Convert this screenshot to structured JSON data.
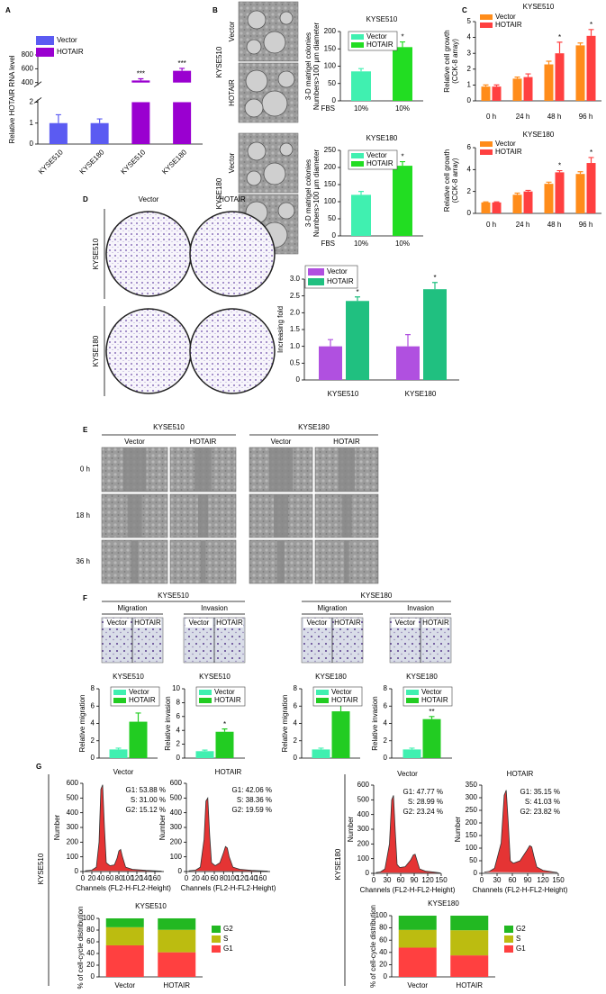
{
  "figure": {
    "panel_letters": [
      "A",
      "B",
      "C",
      "D",
      "E",
      "F",
      "G"
    ],
    "B": [
      {
        "cell_line": "KYSE510",
        "conditions": [
          "Vector",
          "HOTAIR"
        ]
      },
      {
        "cell_line": "KYSE180",
        "conditions": [
          "Vector",
          "HOTAIR"
        ]
      }
    ],
    "D": {
      "columns": [
        "Vector",
        "HOTAIR"
      ],
      "rows": [
        "KYSE510",
        "KYSE180"
      ]
    },
    "E": {
      "groups": [
        {
          "title": "KYSE510",
          "columns": [
            "Vector",
            "HOTAIR"
          ]
        },
        {
          "title": "KYSE180",
          "columns": [
            "Vector",
            "HOTAIR"
          ]
        }
      ],
      "rows": [
        "0 h",
        "18 h",
        "36 h"
      ]
    },
    "F": {
      "groups": [
        {
          "title": "KYSE510",
          "assays": [
            {
              "title": "Migration",
              "columns": [
                "Vector",
                "HOTAIR"
              ]
            },
            {
              "title": "Invasion",
              "columns": [
                "Vector",
                "HOTAIR"
              ]
            }
          ]
        },
        {
          "title": "KYSE180",
          "assays": [
            {
              "title": "Migration",
              "columns": [
                "Vector",
                "HOTAIR"
              ]
            },
            {
              "title": "Invasion",
              "columns": [
                "Vector",
                "HOTAIR"
              ]
            }
          ]
        }
      ]
    },
    "G": {
      "rows": [
        "KYSE510",
        "KYSE180"
      ]
    }
  },
  "chart_data": [
    {
      "type": "bar",
      "ylabel": "Relative HOTAIR RNA level",
      "categories": [
        "KYSE510",
        "KYSE180",
        "KYSE510",
        "KYSE180"
      ],
      "series": [
        {
          "name": "Vector",
          "color": "#5b5bf2",
          "values": [
            1,
            1,
            null,
            null
          ],
          "errors": [
            0.4,
            0.2,
            null,
            null
          ]
        },
        {
          "name": "HOTAIR",
          "color": "#9a00d0",
          "values": [
            null,
            null,
            430,
            570
          ],
          "errors": [
            null,
            null,
            25,
            35
          ],
          "significance": [
            null,
            null,
            "***",
            "***"
          ]
        }
      ],
      "ylim": [
        0,
        800
      ],
      "ybreak": [
        2,
        400
      ],
      "yticks": [
        0,
        1,
        2,
        400,
        600,
        800
      ],
      "legend": "upper left"
    },
    {
      "type": "bar",
      "title": "KYSE510",
      "ylabel": [
        "3-D matrigel colonies",
        "Numbers>100 μm diameter"
      ],
      "xlabel": "FBS",
      "categories": [
        "10%",
        "10%"
      ],
      "series": [
        {
          "name": "Vector",
          "color": "#40f0b0",
          "values": [
            85,
            null
          ],
          "errors": [
            8,
            null
          ]
        },
        {
          "name": "HOTAIR",
          "color": "#22dd22",
          "values": [
            null,
            155
          ],
          "errors": [
            null,
            15
          ],
          "significance": [
            null,
            "*"
          ]
        }
      ],
      "ylim": [
        0,
        200
      ],
      "yticks": [
        0,
        50,
        100,
        150,
        200
      ],
      "legend": "upper left"
    },
    {
      "type": "bar",
      "title": "KYSE180",
      "ylabel": [
        "3-D matrigel colonies",
        "Numbers>100 μm diameter"
      ],
      "xlabel": "FBS",
      "categories": [
        "10%",
        "10%"
      ],
      "series": [
        {
          "name": "Vector",
          "color": "#40f0b0",
          "values": [
            120,
            null
          ],
          "errors": [
            10,
            null
          ]
        },
        {
          "name": "HOTAIR",
          "color": "#22dd22",
          "values": [
            null,
            205
          ],
          "errors": [
            null,
            12
          ],
          "significance": [
            null,
            "*"
          ]
        }
      ],
      "ylim": [
        0,
        250
      ],
      "yticks": [
        0,
        50,
        100,
        150,
        200,
        250
      ],
      "legend": "upper left"
    },
    {
      "type": "bar",
      "title": "KYSE510",
      "ylabel": [
        "Relative cell growth",
        "(CCK-8 array)"
      ],
      "categories": [
        "0 h",
        "24 h",
        "48 h",
        "96 h"
      ],
      "series": [
        {
          "name": "Vector",
          "color": "#ff8c1a",
          "values": [
            0.9,
            1.4,
            2.3,
            3.5
          ],
          "errors": [
            0.1,
            0.1,
            0.2,
            0.15
          ]
        },
        {
          "name": "HOTAIR",
          "color": "#ff4040",
          "values": [
            0.9,
            1.5,
            3.0,
            4.1
          ],
          "errors": [
            0.1,
            0.2,
            0.7,
            0.4
          ],
          "significance": [
            null,
            null,
            "*",
            "*"
          ]
        }
      ],
      "ylim": [
        0,
        5
      ],
      "yticks": [
        0,
        1,
        2,
        3,
        4,
        5
      ],
      "legend": "upper left"
    },
    {
      "type": "bar",
      "title": "KYSE180",
      "ylabel": [
        "Relative cell growth",
        "(CCK-8 array)"
      ],
      "categories": [
        "0 h",
        "24 h",
        "48 h",
        "96 h"
      ],
      "series": [
        {
          "name": "Vector",
          "color": "#ff8c1a",
          "values": [
            1.0,
            1.7,
            2.7,
            3.6
          ],
          "errors": [
            0.05,
            0.15,
            0.15,
            0.2
          ]
        },
        {
          "name": "HOTAIR",
          "color": "#ff4040",
          "values": [
            1.0,
            2.0,
            3.75,
            4.6
          ],
          "errors": [
            0.05,
            0.1,
            0.15,
            0.5
          ],
          "significance": [
            null,
            null,
            "*",
            "*"
          ]
        }
      ],
      "ylim": [
        0,
        6
      ],
      "yticks": [
        0,
        2,
        4,
        6
      ],
      "legend": "upper left"
    },
    {
      "type": "bar",
      "ylabel": "Increasing fold",
      "categories": [
        "KYSE510",
        "KYSE180"
      ],
      "series": [
        {
          "name": "Vector",
          "color": "#b050e0",
          "values": [
            1.0,
            1.0
          ],
          "errors": [
            0.2,
            0.35
          ]
        },
        {
          "name": "HOTAIR",
          "color": "#20c080",
          "values": [
            2.35,
            2.7
          ],
          "errors": [
            0.12,
            0.2
          ],
          "significance": [
            "*",
            "*"
          ]
        }
      ],
      "ylim": [
        0,
        3
      ],
      "yticks": [
        0,
        0.5,
        {
          "value": 1,
          "label": "1.0"
        },
        1.5,
        {
          "value": 2,
          "label": "2.0"
        },
        2.5,
        {
          "value": 3,
          "label": "3.0"
        }
      ],
      "legend": "upper left"
    },
    {
      "type": "bar",
      "title": "KYSE510",
      "ylabel": "Relative migration",
      "categories": [
        null
      ],
      "series": [
        {
          "name": "Vector",
          "color": "#40f0b0",
          "values": [
            1
          ],
          "errors": [
            0.15
          ]
        },
        {
          "name": "HOTAIR",
          "color": "#22cc22",
          "values": [
            4.2
          ],
          "errors": [
            1.0
          ]
        }
      ],
      "ylim": [
        0,
        8
      ],
      "yticks": [
        0,
        2,
        4,
        6,
        8
      ],
      "legend": "upper left"
    },
    {
      "type": "bar",
      "title": "KYSE510",
      "ylabel": "Relative invasion",
      "categories": [
        null
      ],
      "series": [
        {
          "name": "Vector",
          "color": "#40f0b0",
          "values": [
            1
          ],
          "errors": [
            0.15
          ]
        },
        {
          "name": "HOTAIR",
          "color": "#22cc22",
          "values": [
            3.8
          ],
          "errors": [
            0.4
          ],
          "significance": [
            "*"
          ]
        }
      ],
      "ylim": [
        0,
        10
      ],
      "yticks": [
        0,
        2,
        4,
        6,
        8,
        10
      ],
      "legend": "upper left"
    },
    {
      "type": "bar",
      "title": "KYSE180",
      "ylabel": "Relative migration",
      "categories": [
        null
      ],
      "series": [
        {
          "name": "Vector",
          "color": "#40f0b0",
          "values": [
            1
          ],
          "errors": [
            0.15
          ]
        },
        {
          "name": "HOTAIR",
          "color": "#22cc22",
          "values": [
            5.4
          ],
          "errors": [
            0.7
          ],
          "significance": [
            "**"
          ]
        }
      ],
      "ylim": [
        0,
        8
      ],
      "yticks": [
        0,
        2,
        4,
        6,
        8
      ],
      "legend": "upper left"
    },
    {
      "type": "bar",
      "title": "KYSE180",
      "ylabel": "Relative invasion",
      "categories": [
        null
      ],
      "series": [
        {
          "name": "Vector",
          "color": "#40f0b0",
          "values": [
            1
          ],
          "errors": [
            0.15
          ]
        },
        {
          "name": "HOTAIR",
          "color": "#22cc22",
          "values": [
            4.5
          ],
          "errors": [
            0.3
          ],
          "significance": [
            "**"
          ]
        }
      ],
      "ylim": [
        0,
        8
      ],
      "yticks": [
        0,
        2,
        4,
        6,
        8
      ],
      "legend": "upper left"
    },
    {
      "type": "area",
      "title": "Vector",
      "xlabel": "Channels (FL2-H-FL2-Height)",
      "ylabel": "Number",
      "color": "#e01010",
      "x": [
        5,
        20,
        30,
        36,
        40,
        44,
        48,
        52,
        60,
        70,
        76,
        80,
        84,
        88,
        95,
        110,
        140,
        175
      ],
      "values": [
        5,
        10,
        30,
        200,
        560,
        590,
        300,
        60,
        40,
        45,
        90,
        140,
        150,
        100,
        30,
        15,
        8,
        3
      ],
      "xlim": [
        0,
        180
      ],
      "xticks": [
        0,
        20,
        40,
        60,
        80,
        100,
        120,
        140,
        160
      ],
      "ylim": [
        0,
        600
      ],
      "yticks": [
        0,
        100,
        200,
        300,
        400,
        500,
        600
      ],
      "stats": [
        "G1: 53.88 %",
        "S: 31.00 %",
        "G2: 15.12 %"
      ]
    },
    {
      "type": "area",
      "title": "HOTAIR",
      "xlabel": "Channels (FL2-H-FL2-Height)",
      "ylabel": "Number",
      "color": "#e01010",
      "x": [
        5,
        20,
        30,
        38,
        42,
        46,
        50,
        54,
        62,
        72,
        80,
        84,
        88,
        92,
        100,
        115,
        140,
        175
      ],
      "values": [
        5,
        10,
        30,
        220,
        480,
        500,
        250,
        60,
        40,
        60,
        130,
        170,
        160,
        100,
        30,
        15,
        8,
        3
      ],
      "xlim": [
        0,
        180
      ],
      "xticks": [
        0,
        20,
        40,
        60,
        80,
        100,
        120,
        140,
        160
      ],
      "ylim": [
        0,
        600
      ],
      "yticks": [
        0,
        100,
        200,
        300,
        400,
        500,
        600
      ],
      "stats": [
        "G1: 42.06 %",
        "S: 38.36 %",
        "G2: 19.59 %"
      ]
    },
    {
      "type": "area",
      "title": "Vector",
      "xlabel": "Channels (FL2-H-FL2-Height)",
      "ylabel": "Number",
      "color": "#e01010",
      "x": [
        5,
        15,
        25,
        35,
        40,
        44,
        48,
        52,
        58,
        70,
        82,
        88,
        92,
        96,
        102,
        115,
        135,
        148
      ],
      "values": [
        5,
        10,
        30,
        200,
        500,
        530,
        280,
        60,
        40,
        45,
        90,
        125,
        130,
        90,
        30,
        15,
        8,
        3
      ],
      "xlim": [
        0,
        150
      ],
      "xticks": [
        0,
        30,
        60,
        90,
        120,
        150
      ],
      "ylim": [
        0,
        600
      ],
      "yticks": [
        0,
        100,
        200,
        300,
        400,
        500,
        600
      ],
      "stats": [
        "G1: 47.77 %",
        "S: 28.99 %",
        "G2: 23.24 %"
      ]
    },
    {
      "type": "area",
      "title": "HOTAIR",
      "xlabel": "Channels (FL2-H-FL2-Height)",
      "ylabel": "Number",
      "color": "#e01010",
      "x": [
        5,
        15,
        25,
        38,
        44,
        48,
        52,
        56,
        62,
        75,
        88,
        94,
        98,
        102,
        108,
        120,
        138,
        148
      ],
      "values": [
        5,
        8,
        20,
        120,
        310,
        330,
        200,
        50,
        40,
        50,
        90,
        110,
        105,
        70,
        25,
        12,
        6,
        3
      ],
      "xlim": [
        0,
        150
      ],
      "xticks": [
        0,
        30,
        60,
        90,
        120,
        150
      ],
      "ylim": [
        0,
        350
      ],
      "yticks": [
        0,
        50,
        100,
        150,
        200,
        250,
        300,
        350
      ],
      "stats": [
        "G1: 35.15 %",
        "S: 41.03 %",
        "G2: 23.82 %"
      ]
    },
    {
      "type": "bar",
      "stacked": true,
      "title": "KYSE510",
      "ylabel": "% of cell-cycle distribution",
      "categories": [
        "Vector",
        "HOTAIR"
      ],
      "series": [
        {
          "name": "G1",
          "color": "#ff4040",
          "values": [
            53.88,
            42.06
          ]
        },
        {
          "name": "S",
          "color": "#bcbc10",
          "values": [
            31.0,
            38.36
          ]
        },
        {
          "name": "G2",
          "color": "#22b822",
          "values": [
            15.12,
            19.59
          ]
        }
      ],
      "ylim": [
        0,
        100
      ],
      "yticks": [
        0,
        20,
        40,
        60,
        80,
        100
      ],
      "legend": "right"
    },
    {
      "type": "bar",
      "stacked": true,
      "title": "KYSE180",
      "ylabel": "% of cell-cycle distribution",
      "categories": [
        "Vector",
        "HOTAIR"
      ],
      "series": [
        {
          "name": "G1",
          "color": "#ff4040",
          "values": [
            47.77,
            35.15
          ]
        },
        {
          "name": "S",
          "color": "#bcbc10",
          "values": [
            28.99,
            41.03
          ]
        },
        {
          "name": "G2",
          "color": "#22b822",
          "values": [
            23.24,
            23.82
          ]
        }
      ],
      "ylim": [
        0,
        100
      ],
      "yticks": [
        0,
        20,
        40,
        60,
        80,
        100
      ],
      "legend": "right"
    }
  ]
}
